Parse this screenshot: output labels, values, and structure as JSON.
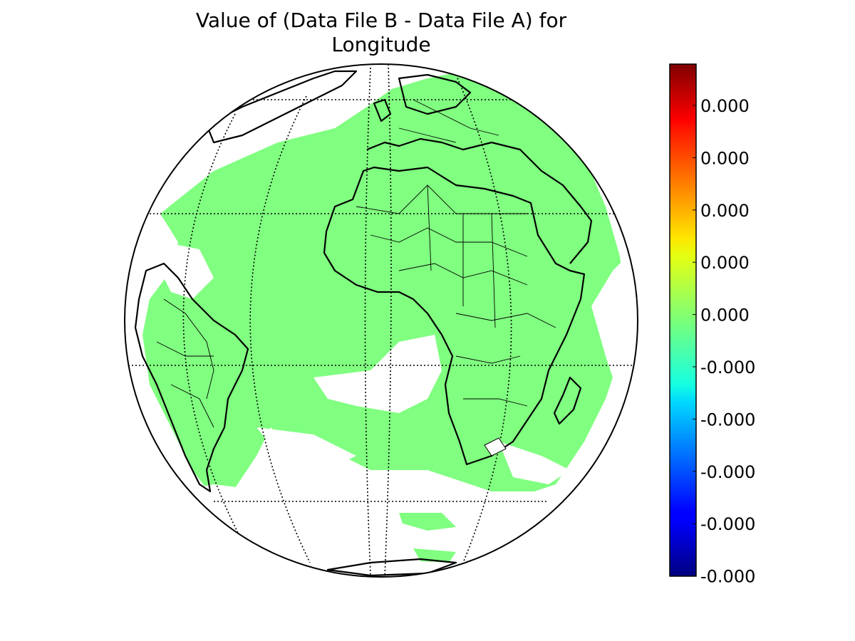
{
  "figure": {
    "title_line1": "Value of (Data File B - Data File A) for",
    "title_line2": "Longitude"
  },
  "map": {
    "projection": "orthographic",
    "graticule": "dotted",
    "fill_color": "#80ff80",
    "background_color": "#ffffff",
    "coastline_color": "#000000"
  },
  "colorbar": {
    "colormap": "jet",
    "tick_labels": [
      "0.000",
      "0.000",
      "0.000",
      "0.000",
      "0.000",
      "-0.000",
      "-0.000",
      "-0.000",
      "-0.000",
      "-0.000"
    ]
  }
}
